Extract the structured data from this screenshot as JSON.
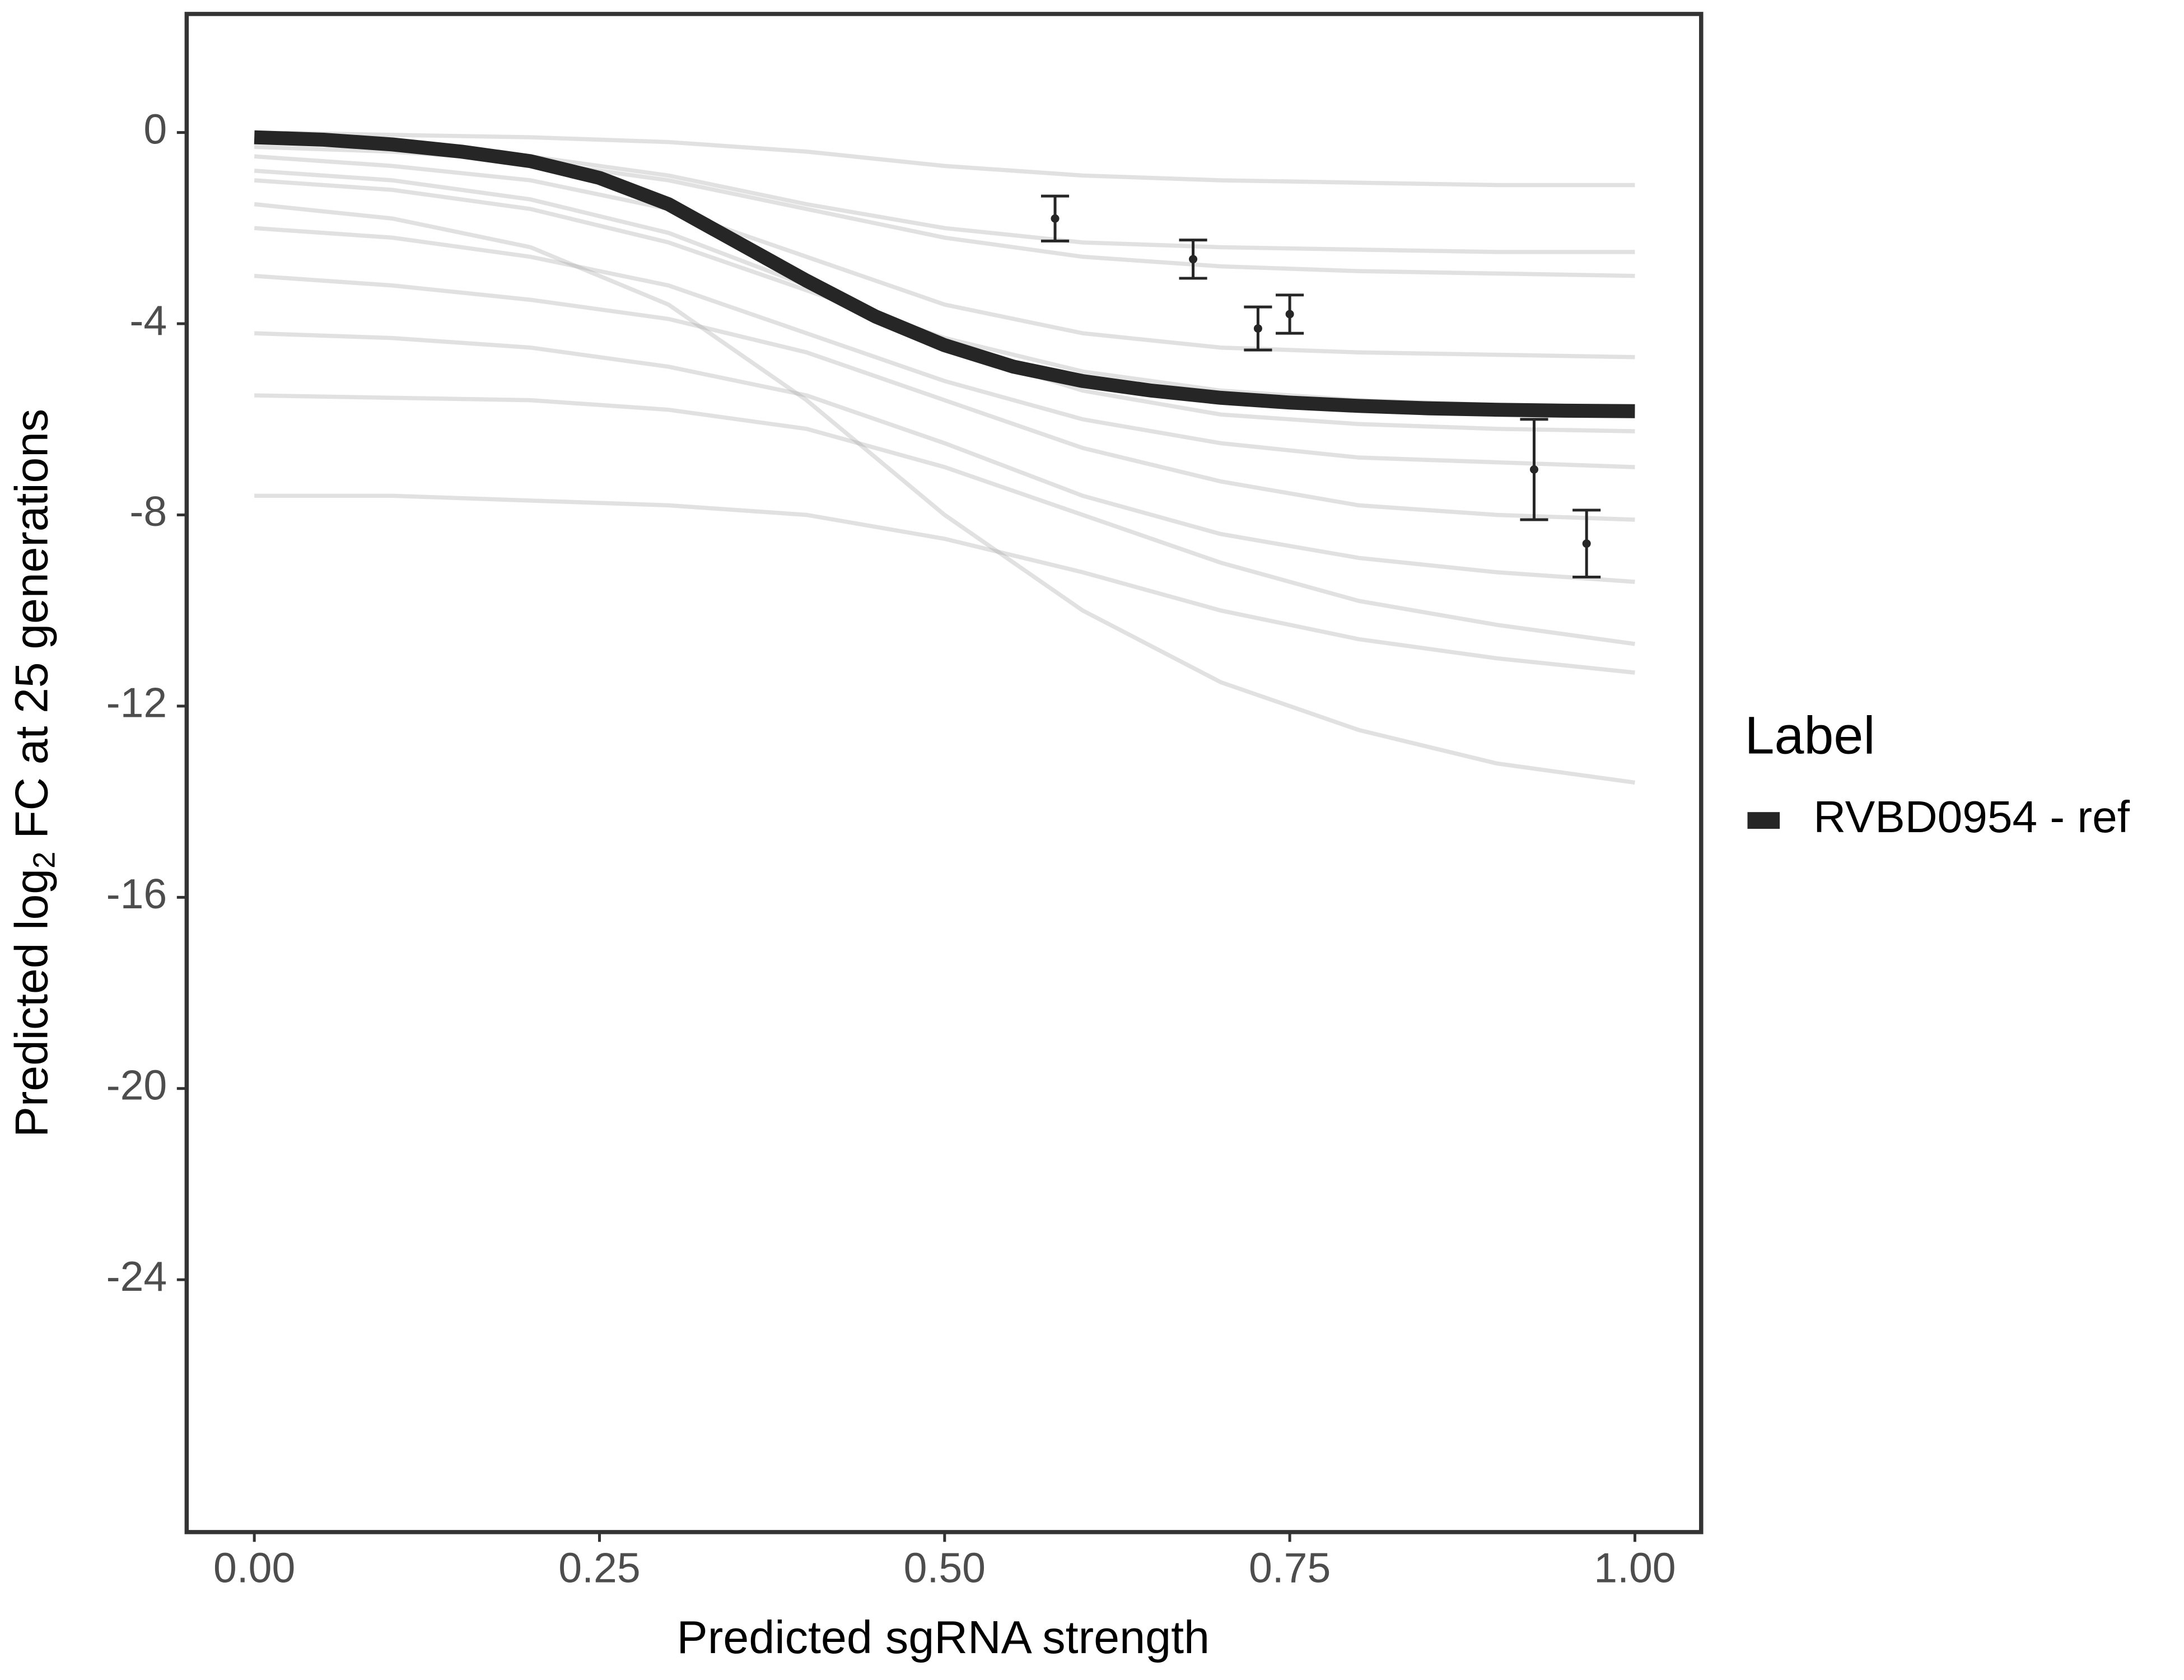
{
  "chart_data": {
    "type": "line",
    "x_label": "Predicted sgRNA strength",
    "y_label": {
      "before": "Predicted  log",
      "subscript": "2",
      "after": " FC at 25 generations"
    },
    "legend_title": "Label",
    "legend": "right",
    "x": [
      0,
      0.05,
      0.1,
      0.15,
      0.2,
      0.25,
      0.3,
      0.35,
      0.4,
      0.45,
      0.5,
      0.55,
      0.6,
      0.65,
      0.7,
      0.75,
      0.8,
      0.85,
      0.9,
      0.95,
      1.0
    ],
    "series": [
      {
        "name": "RVBD0954 - ref",
        "color": "#262626",
        "values": [
          -0.1,
          -0.15,
          -0.25,
          -0.4,
          -0.6,
          -0.95,
          -1.5,
          -2.3,
          -3.1,
          -3.85,
          -4.45,
          -4.9,
          -5.2,
          -5.4,
          -5.55,
          -5.65,
          -5.72,
          -5.77,
          -5.8,
          -5.82,
          -5.83
        ]
      }
    ],
    "draws": {
      "color": "#aaaaaa",
      "x": [
        0,
        0.1,
        0.2,
        0.3,
        0.4,
        0.5,
        0.6,
        0.7,
        0.8,
        0.9,
        1.0
      ],
      "lines": [
        [
          0,
          -0.05,
          -0.1,
          -0.2,
          -0.4,
          -0.7,
          -0.9,
          -1.0,
          -1.05,
          -1.1,
          -1.1
        ],
        [
          -0.3,
          -0.4,
          -0.6,
          -1.0,
          -1.6,
          -2.2,
          -2.6,
          -2.8,
          -2.9,
          -2.95,
          -3.0
        ],
        [
          -0.5,
          -0.7,
          -1.0,
          -1.6,
          -2.6,
          -3.6,
          -4.2,
          -4.5,
          -4.6,
          -4.65,
          -4.7
        ],
        [
          -1.0,
          -1.2,
          -1.6,
          -2.3,
          -3.3,
          -4.3,
          -5.0,
          -5.4,
          -5.6,
          -5.7,
          -5.75
        ],
        [
          -2.0,
          -2.2,
          -2.6,
          -3.2,
          -4.2,
          -5.2,
          -6.0,
          -6.5,
          -6.8,
          -6.9,
          -7.0
        ],
        [
          -3.0,
          -3.2,
          -3.5,
          -3.9,
          -4.6,
          -5.6,
          -6.6,
          -7.3,
          -7.8,
          -8.0,
          -8.1
        ],
        [
          -4.2,
          -4.3,
          -4.5,
          -4.9,
          -5.5,
          -6.5,
          -7.6,
          -8.4,
          -8.9,
          -9.2,
          -9.4
        ],
        [
          -5.5,
          -5.55,
          -5.6,
          -5.8,
          -6.2,
          -7.0,
          -8.0,
          -9.0,
          -9.8,
          -10.3,
          -10.7
        ],
        [
          -7.6,
          -7.6,
          -7.7,
          -7.8,
          -8.0,
          -8.5,
          -9.2,
          -10.0,
          -10.6,
          -11.0,
          -11.3
        ],
        [
          -1.5,
          -1.8,
          -2.4,
          -3.6,
          -5.6,
          -8.0,
          -10.0,
          -11.5,
          -12.5,
          -13.2,
          -13.6
        ],
        [
          -0.2,
          -0.3,
          -0.5,
          -0.9,
          -1.5,
          -2.0,
          -2.3,
          -2.4,
          -2.45,
          -2.5,
          -2.5
        ],
        [
          -0.8,
          -1.0,
          -1.4,
          -2.1,
          -3.2,
          -4.5,
          -5.4,
          -5.9,
          -6.1,
          -6.2,
          -6.25
        ]
      ]
    },
    "points": {
      "color": "#262626",
      "x": [
        0.58,
        0.68,
        0.727,
        0.75,
        0.927,
        0.965
      ],
      "values": [
        -1.8,
        -2.65,
        -4.1,
        -3.8,
        -7.05,
        -8.6
      ],
      "errors": [
        0.47,
        0.4,
        0.45,
        0.4,
        1.05,
        0.7
      ]
    },
    "xlim": [
      -0.049,
      1.048
    ],
    "ylim": [
      -29.28,
      2.48
    ],
    "xticks": [
      {
        "value": 0,
        "label": "0.00"
      },
      {
        "value": 0.25,
        "label": "0.25"
      },
      {
        "value": 0.5,
        "label": "0.50"
      },
      {
        "value": 0.75,
        "label": "0.75"
      },
      {
        "value": 1.0,
        "label": "1.00"
      }
    ],
    "yticks": [
      0,
      -4,
      -8,
      -12,
      -16,
      -20,
      -24
    ],
    "grid": false
  }
}
